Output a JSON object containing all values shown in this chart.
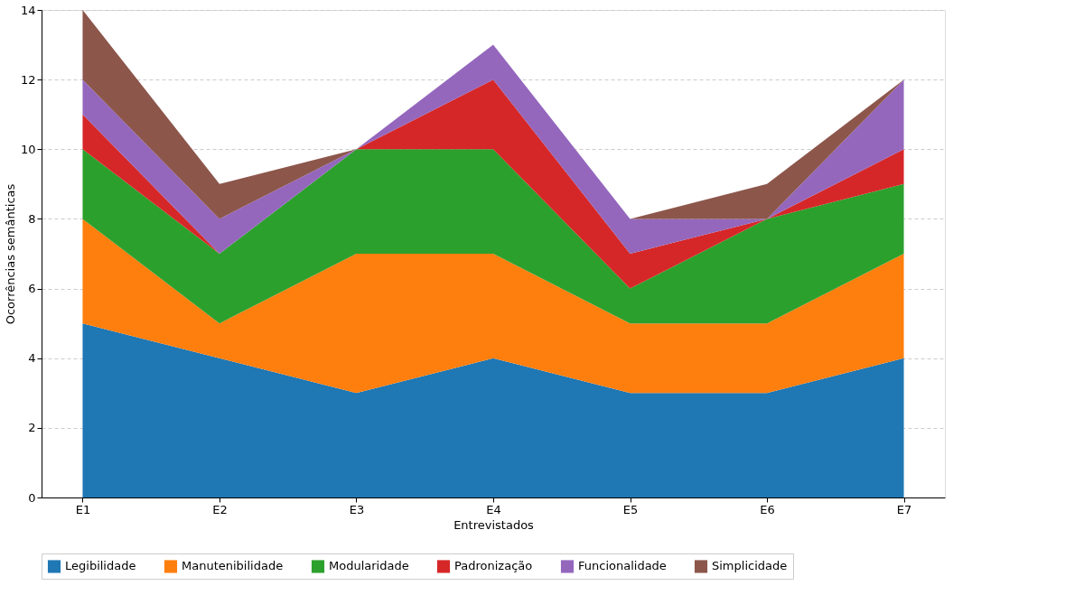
{
  "chart_data": {
    "type": "area",
    "stacked": true,
    "xlabel": "Entrevistados",
    "ylabel": "Ocorrências semânticas",
    "categories": [
      "E1",
      "E2",
      "E3",
      "E4",
      "E5",
      "E6",
      "E7"
    ],
    "series": [
      {
        "name": "Legibilidade",
        "color": "#1f77b4",
        "values": [
          5,
          4,
          3,
          4,
          3,
          3,
          4
        ]
      },
      {
        "name": "Manutenibilidade",
        "color": "#ff7f0e",
        "values": [
          3,
          1,
          4,
          3,
          2,
          2,
          3
        ]
      },
      {
        "name": "Modularidade",
        "color": "#2ca02c",
        "values": [
          2,
          2,
          3,
          3,
          1,
          3,
          2
        ]
      },
      {
        "name": "Padronização",
        "color": "#d62728",
        "values": [
          1,
          0,
          0,
          2,
          1,
          0,
          1
        ]
      },
      {
        "name": "Funcionalidade",
        "color": "#9467bd",
        "values": [
          1,
          1,
          0,
          1,
          1,
          0,
          2
        ]
      },
      {
        "name": "Simplicidade",
        "color": "#8c564b",
        "values": [
          2,
          1,
          0,
          0,
          0,
          1,
          0
        ]
      }
    ],
    "ylim": [
      0,
      14
    ],
    "yticks": [
      0,
      2,
      4,
      6,
      8,
      10,
      12,
      14
    ],
    "grid": "y",
    "legend": "bottom"
  }
}
